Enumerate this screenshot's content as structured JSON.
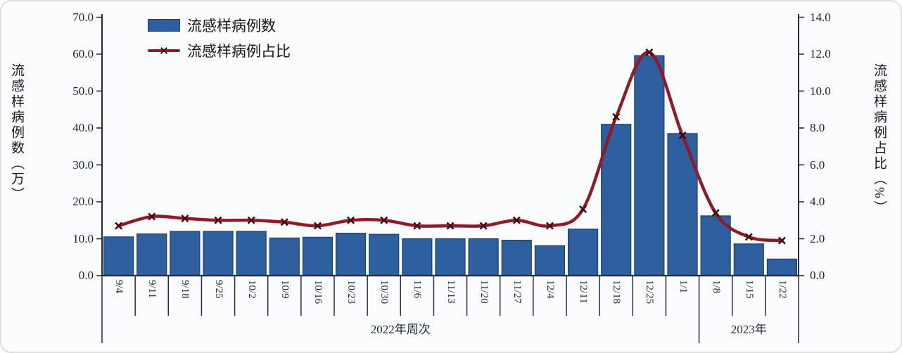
{
  "figure": {
    "background": "#fbfcfe",
    "border_color": "#e0e0e0"
  },
  "legend": {
    "items": [
      {
        "label": "流感样病例数",
        "marker": "bar-swatch"
      },
      {
        "label": "流感样病例占比",
        "marker": "line-x-marker"
      }
    ]
  },
  "colors": {
    "bar": "#2e5f9e",
    "bar_border": "#1f3f6b",
    "line": "#8e1b27",
    "marker": "#3c0a12",
    "axis": "#272b3a",
    "text": "#1d2130"
  },
  "chart_data": {
    "type": "bar+line",
    "grid": false,
    "legend_position": "top-left-inside",
    "categories": [
      "9/4",
      "9/11",
      "9/18",
      "9/25",
      "10/2",
      "10/9",
      "10/16",
      "10/23",
      "10/30",
      "11/6",
      "11/13",
      "11/20",
      "11/27",
      "12/4",
      "12/11",
      "12/18",
      "12/25",
      "1/1",
      "1/8",
      "1/15",
      "1/22"
    ],
    "series": [
      {
        "name": "流感样病例数",
        "type": "bar",
        "axis": "left",
        "values": [
          10.5,
          11.3,
          12.0,
          12.0,
          12.0,
          10.2,
          10.4,
          11.5,
          11.2,
          10.0,
          10.0,
          10.0,
          9.6,
          8.1,
          12.6,
          41.0,
          59.6,
          38.5,
          16.2,
          8.6,
          4.5
        ]
      },
      {
        "name": "流感样病例占比",
        "type": "line",
        "axis": "right",
        "values": [
          2.7,
          3.2,
          3.1,
          3.0,
          3.0,
          2.9,
          2.7,
          3.0,
          3.0,
          2.7,
          2.7,
          2.7,
          3.0,
          2.7,
          3.6,
          8.6,
          12.1,
          7.6,
          3.4,
          2.1,
          1.9
        ]
      }
    ],
    "left_axis": {
      "title": "流感样病例数（万）",
      "min": 0,
      "max": 70,
      "step": 10,
      "tick_labels": [
        "70.0",
        "60.0",
        "50.0",
        "40.0",
        "30.0",
        "20.0",
        "10.0",
        "0.0"
      ]
    },
    "right_axis": {
      "title": "流感样病例占比（%）",
      "min": 0,
      "max": 14,
      "step": 2,
      "tick_labels": [
        "14.0",
        "12.0",
        "10.0",
        "8.0",
        "6.0",
        "4.0",
        "2.0",
        "0.0"
      ]
    },
    "x_axis": {
      "group_labels": [
        "2022年周次",
        "2023年"
      ],
      "group_split_after": "1/1"
    }
  }
}
